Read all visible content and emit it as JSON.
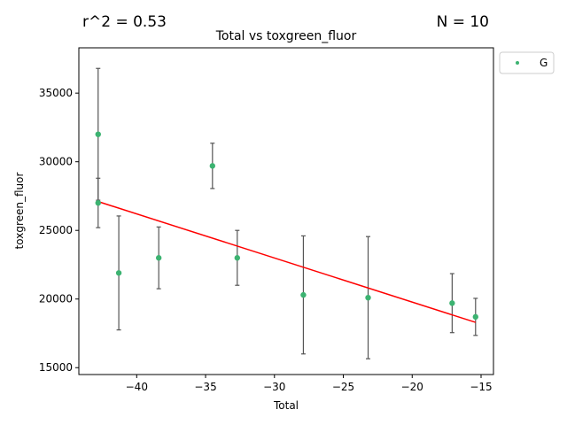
{
  "chart_data": {
    "type": "scatter",
    "title": "Total vs toxgreen_fluor",
    "xlabel": "Total",
    "ylabel": "toxgreen_fluor",
    "annotations": {
      "r2": "r^2 = 0.53",
      "n": "N = 10"
    },
    "xlim": [
      -44.2,
      -14.1
    ],
    "ylim": [
      14500,
      38300
    ],
    "xticks": [
      -40,
      -35,
      -30,
      -25,
      -20,
      -15
    ],
    "xtick_labels": [
      "−40",
      "−35",
      "−30",
      "−25",
      "−20",
      "−15"
    ],
    "yticks": [
      15000,
      20000,
      25000,
      30000,
      35000
    ],
    "ytick_labels": [
      "15000",
      "20000",
      "25000",
      "30000",
      "35000"
    ],
    "series": [
      {
        "name": "G",
        "color": "#3cb371",
        "points": [
          {
            "x": -42.8,
            "y": 32000,
            "err": 4800
          },
          {
            "x": -42.8,
            "y": 27000,
            "err": 1800
          },
          {
            "x": -41.3,
            "y": 21900,
            "err": 4150
          },
          {
            "x": -38.4,
            "y": 23000,
            "err": 2250
          },
          {
            "x": -34.5,
            "y": 29700,
            "err": 1650
          },
          {
            "x": -32.7,
            "y": 23000,
            "err": 2000
          },
          {
            "x": -27.9,
            "y": 20300,
            "err": 4300
          },
          {
            "x": -23.2,
            "y": 20100,
            "err": 4450
          },
          {
            "x": -17.1,
            "y": 19700,
            "err": 2150
          },
          {
            "x": -15.4,
            "y": 18700,
            "err": 1350
          }
        ]
      }
    ],
    "fit_line": {
      "color": "#ff0000",
      "x": [
        -42.8,
        -15.4
      ],
      "y": [
        27100,
        18300
      ]
    },
    "errorbar_color": "#555555",
    "legend": {
      "placement": "outside-top-right"
    }
  }
}
